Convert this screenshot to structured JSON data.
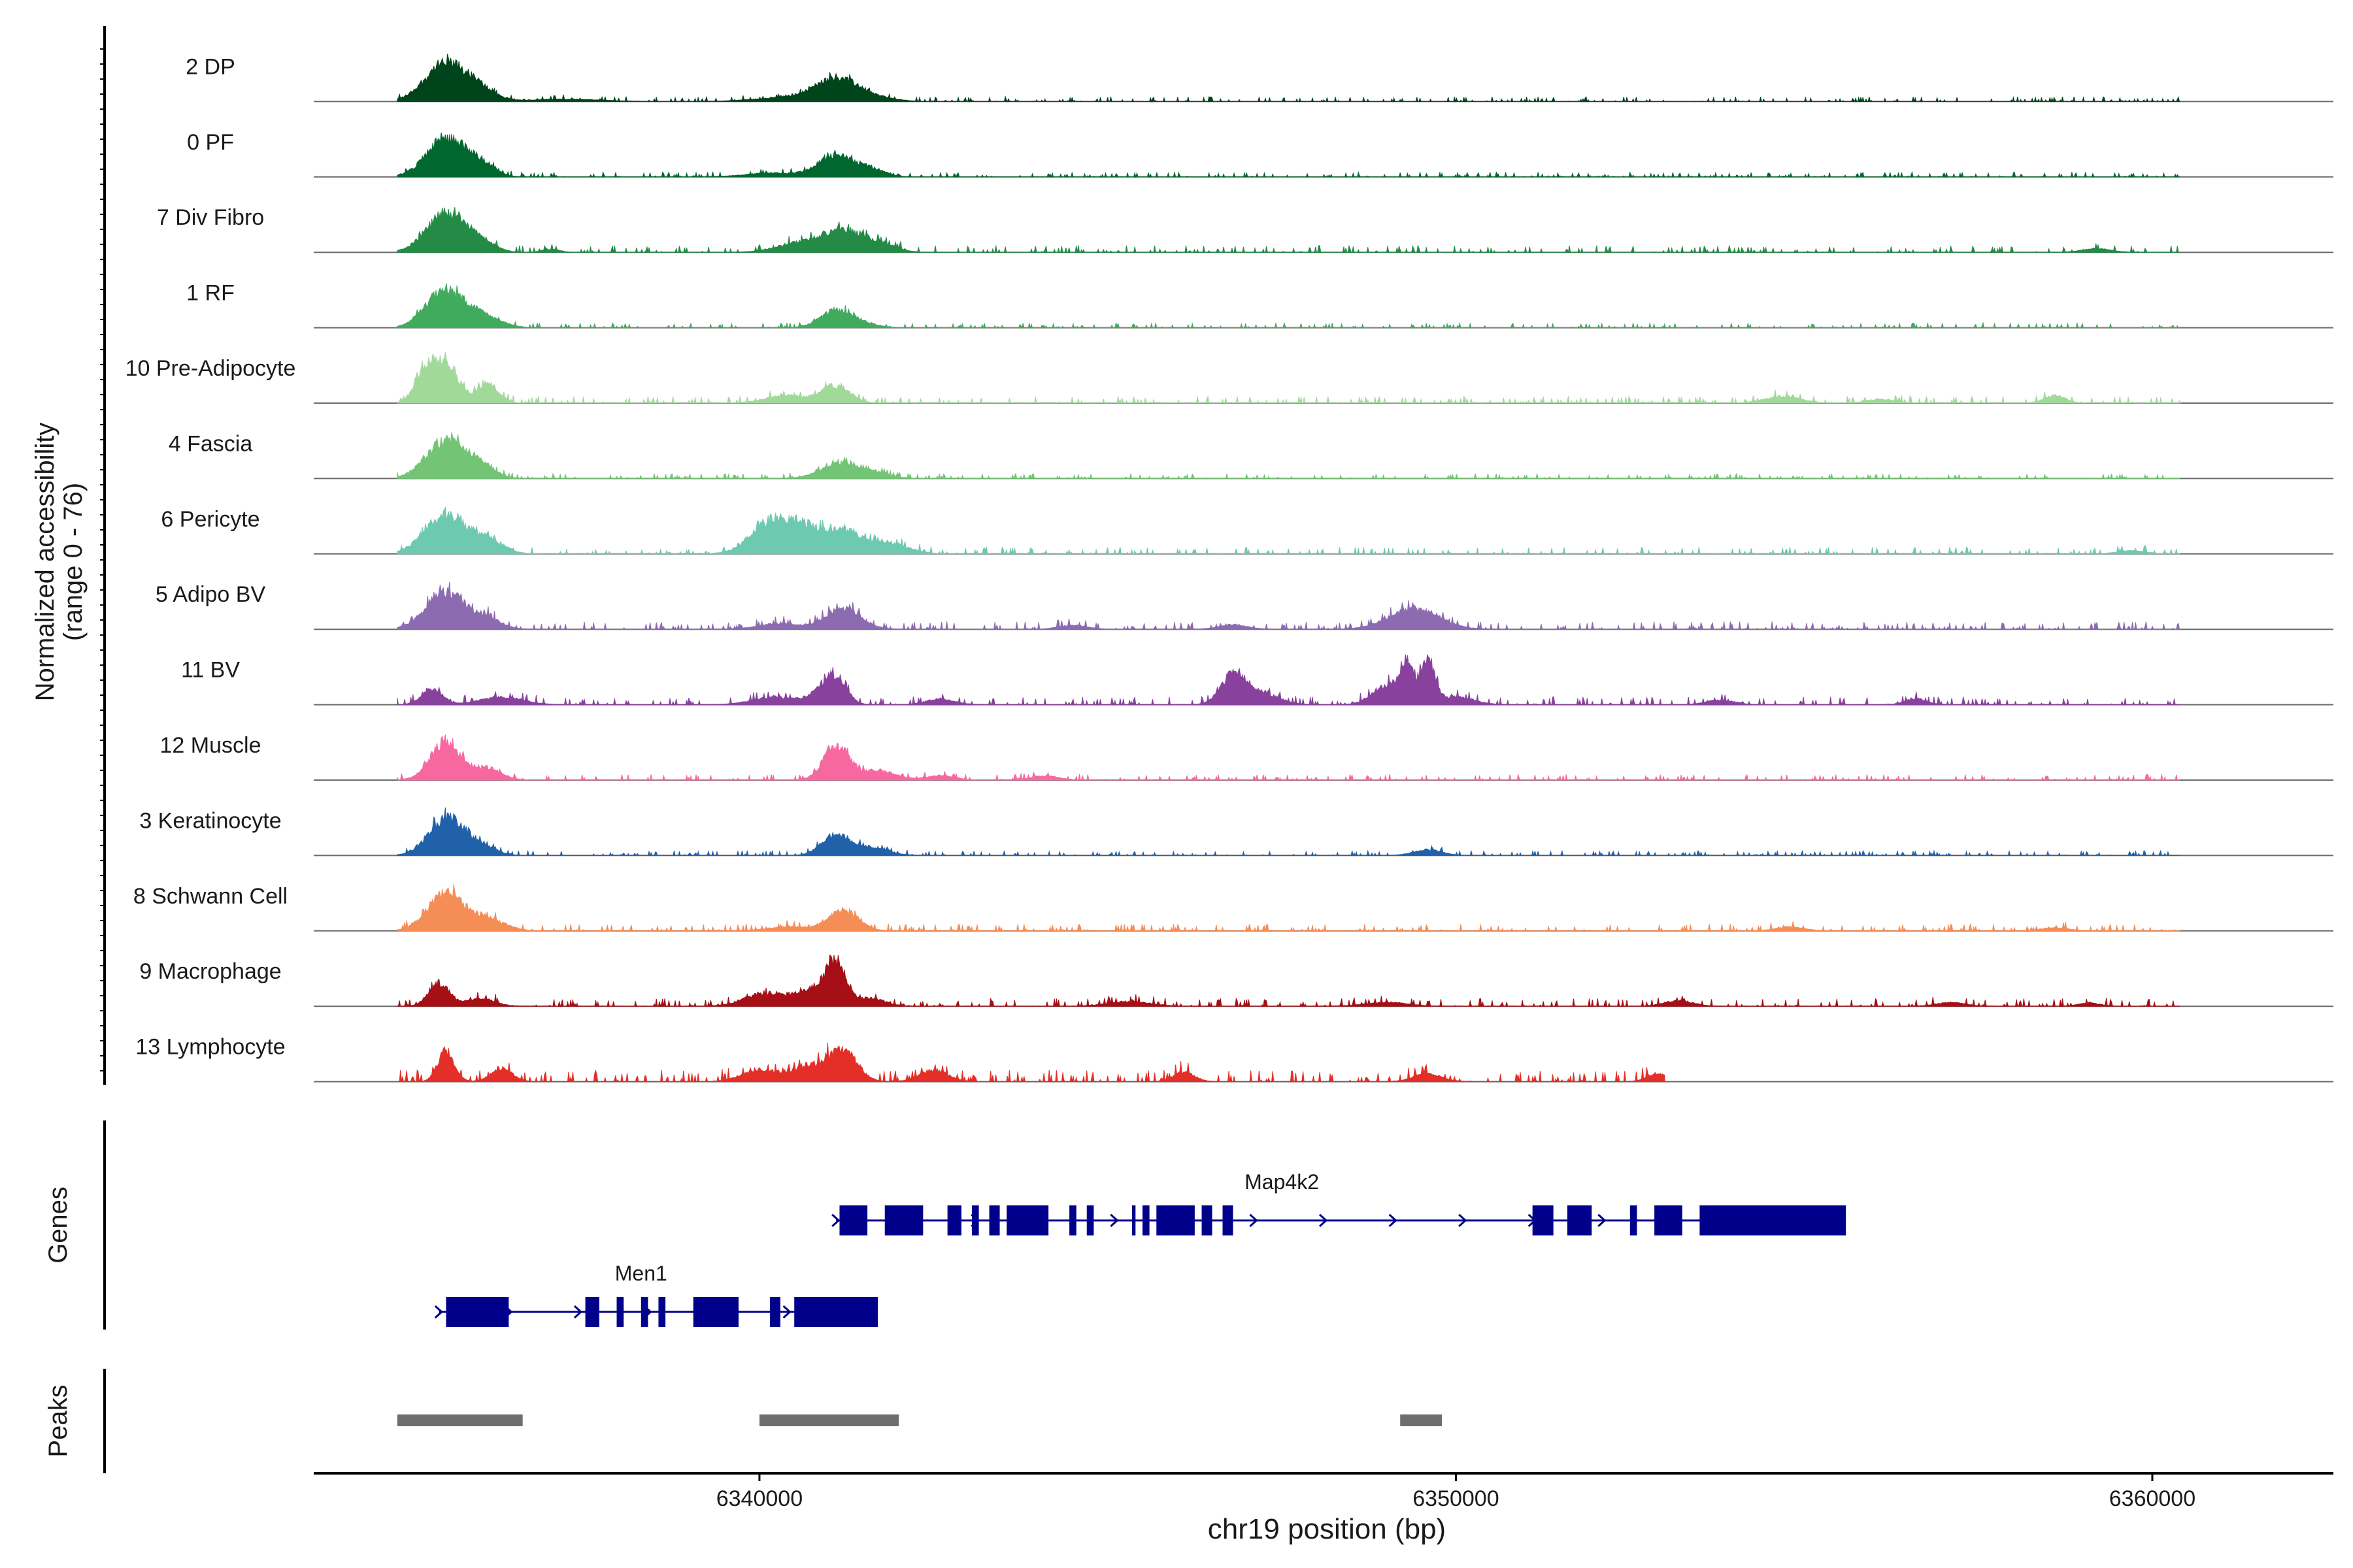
{
  "chart_data": {
    "type": "area",
    "title": "",
    "ylabel_line1": "Normalized accessibility",
    "ylabel_line2": "(range 0 - 76)",
    "y_range": [
      0,
      76
    ],
    "xlabel": "chr19 position (bp)",
    "xlim": [
      6333600,
      6362600
    ],
    "x_ticks": [
      6340000,
      6350000,
      6360000
    ],
    "x_tick_labels": [
      "6340000",
      "6350000",
      "6360000"
    ],
    "tracks": [
      {
        "name": "2 DP",
        "color": "#00441b",
        "peaks": [
          [
            6335500,
            1.0,
            300
          ],
          [
            6336000,
            0.25,
            220
          ],
          [
            6337200,
            0.06,
            500
          ],
          [
            6341100,
            0.55,
            280
          ],
          [
            6340500,
            0.12,
            500
          ],
          [
            6341600,
            0.12,
            300
          ]
        ],
        "noise": 0.05,
        "noise_start": 6334800,
        "noise_end": 6360400
      },
      {
        "name": "0 PF",
        "color": "#00682f",
        "peaks": [
          [
            6335500,
            1.0,
            280
          ],
          [
            6336000,
            0.3,
            200
          ],
          [
            6341100,
            0.55,
            250
          ],
          [
            6341600,
            0.2,
            200
          ],
          [
            6340200,
            0.1,
            400
          ]
        ],
        "noise": 0.05,
        "noise_start": 6334800,
        "noise_end": 6360400
      },
      {
        "name": "7 Div Fibro",
        "color": "#238b45",
        "peaks": [
          [
            6335500,
            1.0,
            280
          ],
          [
            6336000,
            0.25,
            200
          ],
          [
            6337000,
            0.08,
            120
          ],
          [
            6340500,
            0.2,
            300
          ],
          [
            6341200,
            0.6,
            320
          ],
          [
            6341800,
            0.15,
            200
          ],
          [
            6359200,
            0.1,
            200
          ]
        ],
        "noise": 0.07,
        "noise_start": 6334800,
        "noise_end": 6360400
      },
      {
        "name": "1 RF",
        "color": "#41ab5d",
        "peaks": [
          [
            6335500,
            1.0,
            280
          ],
          [
            6336100,
            0.25,
            220
          ],
          [
            6341100,
            0.45,
            220
          ],
          [
            6341500,
            0.1,
            200
          ]
        ],
        "noise": 0.05,
        "noise_start": 6334800,
        "noise_end": 6360400
      },
      {
        "name": "10 Pre-Adipocyte",
        "color": "#a1d99b",
        "peaks": [
          [
            6335200,
            0.8,
            150
          ],
          [
            6335500,
            1.0,
            180
          ],
          [
            6336100,
            0.5,
            150
          ],
          [
            6341100,
            0.45,
            200
          ],
          [
            6340400,
            0.2,
            300
          ],
          [
            6354700,
            0.18,
            250
          ],
          [
            6358600,
            0.2,
            150
          ],
          [
            6356100,
            0.1,
            200
          ]
        ],
        "noise": 0.07,
        "noise_start": 6334800,
        "noise_end": 6360400
      },
      {
        "name": "4 Fascia",
        "color": "#74c476",
        "peaks": [
          [
            6335500,
            1.0,
            280
          ],
          [
            6336000,
            0.3,
            200
          ],
          [
            6341200,
            0.4,
            300
          ],
          [
            6341700,
            0.1,
            200
          ]
        ],
        "noise": 0.05,
        "noise_start": 6334800,
        "noise_end": 6360400
      },
      {
        "name": "6 Pericyte",
        "color": "#6ec9b1",
        "peaks": [
          [
            6335500,
            1.0,
            300
          ],
          [
            6336100,
            0.35,
            220
          ],
          [
            6340200,
            0.9,
            300
          ],
          [
            6340700,
            0.55,
            200
          ],
          [
            6341200,
            0.6,
            220
          ],
          [
            6341800,
            0.3,
            300
          ],
          [
            6359700,
            0.08,
            200
          ]
        ],
        "noise": 0.07,
        "noise_start": 6334800,
        "noise_end": 6360400
      },
      {
        "name": "5 Adipo BV",
        "color": "#8c6bb1",
        "peaks": [
          [
            6335500,
            1.0,
            280
          ],
          [
            6336100,
            0.25,
            200
          ],
          [
            6341200,
            0.55,
            250
          ],
          [
            6340300,
            0.15,
            300
          ],
          [
            6349400,
            0.55,
            350
          ],
          [
            6346800,
            0.12,
            200
          ],
          [
            6344500,
            0.1,
            200
          ]
        ],
        "noise": 0.08,
        "noise_start": 6334800,
        "noise_end": 6360400
      },
      {
        "name": "11 BV",
        "color": "#88419d",
        "peaks": [
          [
            6335300,
            0.4,
            150
          ],
          [
            6336300,
            0.2,
            300
          ],
          [
            6340200,
            0.2,
            300
          ],
          [
            6340900,
            0.3,
            200
          ],
          [
            6341100,
            0.6,
            150
          ],
          [
            6342600,
            0.15,
            200
          ],
          [
            6346800,
            0.75,
            180
          ],
          [
            6347200,
            0.3,
            250
          ],
          [
            6349000,
            0.5,
            200
          ],
          [
            6349300,
            1.0,
            100
          ],
          [
            6349600,
            1.1,
            100
          ],
          [
            6350000,
            0.2,
            250
          ],
          [
            6353800,
            0.12,
            200
          ],
          [
            6356600,
            0.15,
            150
          ]
        ],
        "noise": 0.08,
        "noise_start": 6334800,
        "noise_end": 6360400
      },
      {
        "name": "12 Muscle",
        "color": "#f768a1",
        "peaks": [
          [
            6335500,
            1.0,
            220
          ],
          [
            6336100,
            0.3,
            200
          ],
          [
            6341100,
            0.9,
            180
          ],
          [
            6341700,
            0.25,
            250
          ],
          [
            6342600,
            0.12,
            200
          ],
          [
            6344100,
            0.1,
            200
          ]
        ],
        "noise": 0.06,
        "noise_start": 6334800,
        "noise_end": 6360400
      },
      {
        "name": "3 Keratinocyte",
        "color": "#2061a9",
        "peaks": [
          [
            6335500,
            1.0,
            250
          ],
          [
            6336000,
            0.25,
            200
          ],
          [
            6341100,
            0.55,
            200
          ],
          [
            6341600,
            0.2,
            250
          ],
          [
            6349600,
            0.15,
            200
          ]
        ],
        "noise": 0.05,
        "noise_start": 6334800,
        "noise_end": 6360400
      },
      {
        "name": "8 Schwann Cell",
        "color": "#f58d57",
        "peaks": [
          [
            6335500,
            1.0,
            260
          ],
          [
            6336100,
            0.3,
            250
          ],
          [
            6341200,
            0.55,
            220
          ],
          [
            6340400,
            0.1,
            300
          ],
          [
            6354800,
            0.1,
            200
          ],
          [
            6358600,
            0.08,
            200
          ]
        ],
        "noise": 0.07,
        "noise_start": 6334800,
        "noise_end": 6360400
      },
      {
        "name": "9 Macrophage",
        "color": "#a50f15",
        "peaks": [
          [
            6335400,
            0.6,
            150
          ],
          [
            6336000,
            0.2,
            200
          ],
          [
            6340100,
            0.35,
            300
          ],
          [
            6340800,
            0.4,
            250
          ],
          [
            6341100,
            1.0,
            150
          ],
          [
            6341600,
            0.2,
            200
          ],
          [
            6345300,
            0.12,
            300
          ],
          [
            6349000,
            0.1,
            300
          ],
          [
            6353200,
            0.15,
            200
          ],
          [
            6357100,
            0.1,
            200
          ],
          [
            6359100,
            0.08,
            150
          ]
        ],
        "noise": 0.08,
        "noise_start": 6334800,
        "noise_end": 6360400
      },
      {
        "name": "13 Lymphocyte",
        "color": "#e32f27",
        "peaks": [
          [
            6335500,
            0.8,
            120
          ],
          [
            6336300,
            0.35,
            150
          ],
          [
            6340000,
            0.3,
            250
          ],
          [
            6340700,
            0.4,
            250
          ],
          [
            6341200,
            0.8,
            200
          ],
          [
            6342500,
            0.3,
            200
          ],
          [
            6346100,
            0.25,
            150
          ],
          [
            6349600,
            0.2,
            200
          ],
          [
            6352900,
            0.2,
            150
          ]
        ],
        "noise": 0.12,
        "noise_start": 6334800,
        "noise_end": 6353000
      }
    ],
    "genes_label": "Genes",
    "genes": [
      {
        "name": "Map4k2",
        "start": 6341100,
        "end": 6355600,
        "strand": "+",
        "row": 0,
        "exons": [
          [
            6341150,
            6341550
          ],
          [
            6341800,
            6342350
          ],
          [
            6342700,
            6342900
          ],
          [
            6343050,
            6343150
          ],
          [
            6343300,
            6343450
          ],
          [
            6343550,
            6344150
          ],
          [
            6344450,
            6344550
          ],
          [
            6344700,
            6344800
          ],
          [
            6345350,
            6345400
          ],
          [
            6345500,
            6345600
          ],
          [
            6345700,
            6346250
          ],
          [
            6346350,
            6346500
          ],
          [
            6346650,
            6346800
          ],
          [
            6351100,
            6351400
          ],
          [
            6351600,
            6351950
          ],
          [
            6352500,
            6352600
          ],
          [
            6352850,
            6353250
          ],
          [
            6353500,
            6355600
          ]
        ]
      },
      {
        "name": "Men1",
        "start": 6335400,
        "end": 6340900,
        "strand": "+",
        "row": 1,
        "exons": [
          [
            6335500,
            6336400
          ],
          [
            6337500,
            6337700
          ],
          [
            6337950,
            6338050
          ],
          [
            6338300,
            6338400
          ],
          [
            6338550,
            6338650
          ],
          [
            6339050,
            6339700
          ],
          [
            6340150,
            6340300
          ],
          [
            6340500,
            6341700
          ]
        ]
      }
    ],
    "peaks_label": "Peaks",
    "peak_regions": [
      [
        6334800,
        6336600
      ],
      [
        6340000,
        6342000
      ],
      [
        6349200,
        6349800
      ]
    ]
  }
}
